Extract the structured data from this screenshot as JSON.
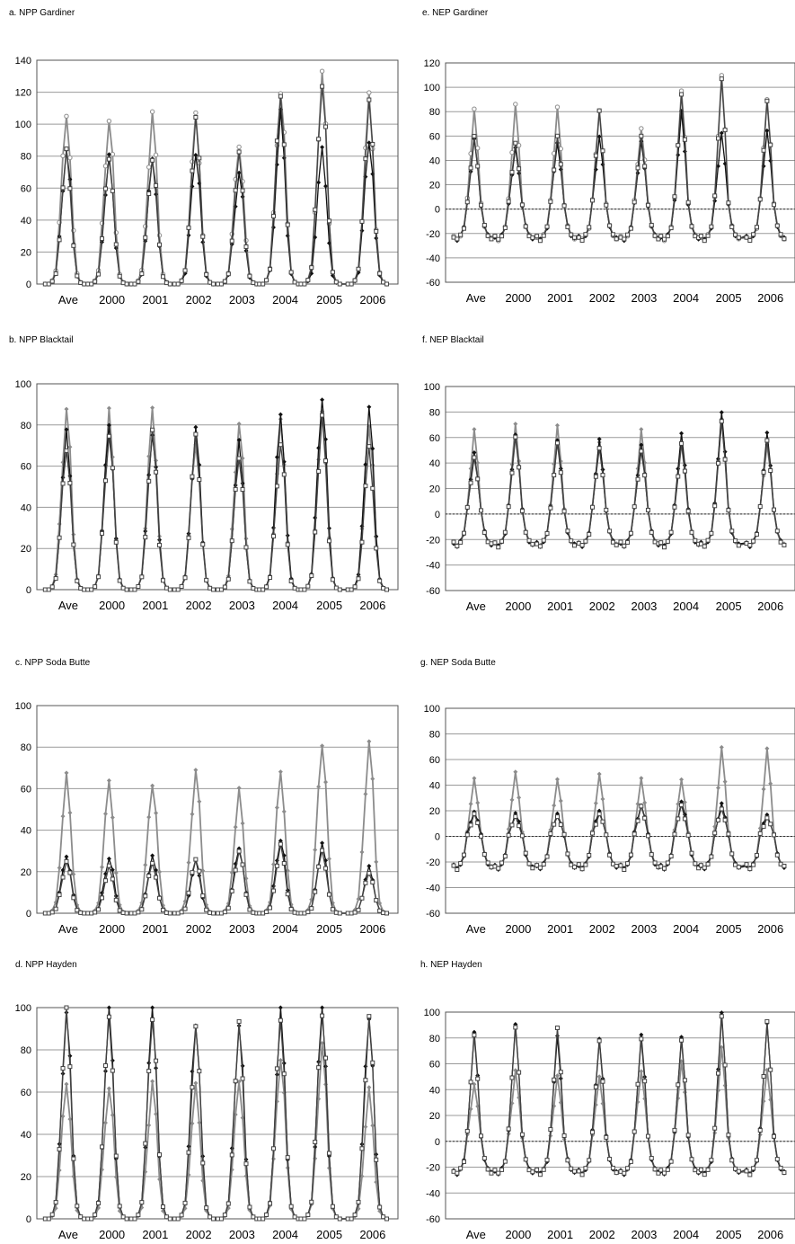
{
  "page": {
    "background": "#ffffff"
  },
  "colors": {
    "series_black": "#111111",
    "series_dark": "#444444",
    "series_gray": "#8c8c8c",
    "grid": "#9a9a9a",
    "frame": "#555555",
    "zero_line": "#333333"
  },
  "panels": [
    {
      "id": "a",
      "title": "a.  NPP Gardiner"
    },
    {
      "id": "e",
      "title": "e.  NEP Gardiner"
    },
    {
      "id": "b",
      "title": "b.   NPP Blacktail"
    },
    {
      "id": "f",
      "title": "f.  NEP Blacktail"
    },
    {
      "id": "c",
      "title": "c. NPP Soda Butte"
    },
    {
      "id": "g",
      "title": "g. NEP Soda Butte"
    },
    {
      "id": "d",
      "title": "d. NPP Hayden"
    },
    {
      "id": "h",
      "title": "h.  NEP Hayden"
    }
  ],
  "chart_data": [
    {
      "panel": "a",
      "type": "line",
      "title": "a.  NPP Gardiner",
      "ylim": [
        0,
        140
      ],
      "yticks": [
        0,
        20,
        40,
        60,
        80,
        100,
        120,
        140
      ],
      "zero_line": false,
      "grid": true,
      "categories": [
        "Ave",
        "2000",
        "2001",
        "2002",
        "2003",
        "2004",
        "2005",
        "2006"
      ],
      "series": [
        {
          "color": "#8c8c8c",
          "marker": "circle",
          "peaks": [
            108,
            105,
            105,
            104,
            88,
            123,
            130,
            116
          ]
        },
        {
          "color": "#111111",
          "marker": "diamond",
          "peaks": [
            84,
            78,
            78,
            84,
            70,
            105,
            85,
            92
          ]
        },
        {
          "color": "#444444",
          "marker": "square",
          "peaks": [
            82,
            80,
            80,
            102,
            80,
            120,
            128,
            113
          ]
        }
      ]
    },
    {
      "panel": "e",
      "type": "line",
      "title": "e.  NEP Gardiner",
      "ylim": [
        -60,
        120
      ],
      "yticks": [
        -60,
        -40,
        -20,
        0,
        20,
        40,
        60,
        80,
        100,
        120
      ],
      "zero_line": true,
      "grid": true,
      "categories": [
        "Ave",
        "2000",
        "2001",
        "2002",
        "2003",
        "2004",
        "2005",
        "2006"
      ],
      "series": [
        {
          "color": "#8c8c8c",
          "marker": "circle",
          "peaks": [
            83,
            86,
            83,
            81,
            67,
            97,
            109,
            90
          ]
        },
        {
          "color": "#111111",
          "marker": "diamond",
          "peaks": [
            57,
            50,
            55,
            60,
            55,
            80,
            63,
            65
          ]
        },
        {
          "color": "#444444",
          "marker": "square",
          "peaks": [
            60,
            55,
            60,
            80,
            60,
            95,
            107,
            88
          ]
        }
      ]
    },
    {
      "panel": "b",
      "type": "line",
      "title": "b.   NPP Blacktail",
      "ylim": [
        0,
        100
      ],
      "yticks": [
        0,
        20,
        40,
        60,
        80,
        100
      ],
      "zero_line": false,
      "grid": true,
      "categories": [
        "Ave",
        "2000",
        "2001",
        "2002",
        "2003",
        "2004",
        "2005",
        "2006"
      ],
      "series": [
        {
          "color": "#8c8c8c",
          "marker": "diamond",
          "peaks": [
            89,
            85,
            87,
            73,
            82,
            80,
            85,
            82
          ]
        },
        {
          "color": "#111111",
          "marker": "diamond",
          "peaks": [
            75,
            81,
            78,
            78,
            70,
            86,
            96,
            88
          ]
        },
        {
          "color": "#444444",
          "marker": "square",
          "peaks": [
            70,
            76,
            75,
            74,
            66,
            72,
            82,
            68
          ]
        }
      ]
    },
    {
      "panel": "f",
      "type": "line",
      "title": "f.  NEP Blacktail",
      "ylim": [
        -60,
        100
      ],
      "yticks": [
        -60,
        -40,
        -20,
        0,
        20,
        40,
        60,
        80,
        100
      ],
      "zero_line": true,
      "grid": true,
      "categories": [
        "Ave",
        "2000",
        "2001",
        "2002",
        "2003",
        "2004",
        "2005",
        "2006"
      ],
      "series": [
        {
          "color": "#8c8c8c",
          "marker": "diamond",
          "peaks": [
            66,
            70,
            70,
            57,
            66,
            55,
            75,
            55
          ]
        },
        {
          "color": "#111111",
          "marker": "diamond",
          "peaks": [
            48,
            63,
            58,
            58,
            54,
            64,
            80,
            63
          ]
        },
        {
          "color": "#444444",
          "marker": "square",
          "peaks": [
            45,
            60,
            55,
            52,
            50,
            55,
            72,
            58
          ]
        }
      ]
    },
    {
      "panel": "c",
      "type": "line",
      "title": "c. NPP Soda Butte",
      "ylim": [
        0,
        100
      ],
      "yticks": [
        0,
        20,
        40,
        60,
        80,
        100
      ],
      "zero_line": false,
      "grid": true,
      "categories": [
        "Ave",
        "2000",
        "2001",
        "2002",
        "2003",
        "2004",
        "2005",
        "2006"
      ],
      "series": [
        {
          "color": "#8c8c8c",
          "marker": "diamond",
          "peaks": [
            65,
            64,
            64,
            69,
            58,
            68,
            84,
            83
          ]
        },
        {
          "color": "#111111",
          "marker": "diamond",
          "peaks": [
            28,
            27,
            27,
            25,
            32,
            36,
            33,
            22
          ]
        },
        {
          "color": "#444444",
          "marker": "square",
          "peaks": [
            25,
            22,
            24,
            27,
            30,
            32,
            30,
            20
          ]
        }
      ]
    },
    {
      "panel": "g",
      "type": "line",
      "title": "g. NEP Soda Butte",
      "ylim": [
        -60,
        100
      ],
      "yticks": [
        -60,
        -40,
        -20,
        0,
        20,
        40,
        60,
        80,
        100
      ],
      "zero_line": true,
      "grid": true,
      "categories": [
        "Ave",
        "2000",
        "2001",
        "2002",
        "2003",
        "2004",
        "2005",
        "2006"
      ],
      "series": [
        {
          "color": "#8c8c8c",
          "marker": "diamond",
          "peaks": [
            45,
            51,
            45,
            48,
            45,
            45,
            70,
            68
          ]
        },
        {
          "color": "#111111",
          "marker": "diamond",
          "peaks": [
            20,
            18,
            17,
            20,
            25,
            27,
            25,
            17
          ]
        },
        {
          "color": "#444444",
          "marker": "square",
          "peaks": [
            17,
            15,
            16,
            18,
            23,
            24,
            22,
            15
          ]
        }
      ]
    },
    {
      "panel": "d",
      "type": "line",
      "title": "d. NPP Hayden",
      "ylim": [
        0,
        100
      ],
      "yticks": [
        0,
        20,
        40,
        60,
        80,
        100
      ],
      "zero_line": false,
      "grid": true,
      "categories": [
        "Ave",
        "2000",
        "2001",
        "2002",
        "2003",
        "2004",
        "2005",
        "2006"
      ],
      "series": [
        {
          "color": "#8c8c8c",
          "marker": "diamond",
          "peaks": [
            65,
            64,
            64,
            62,
            66,
            78,
            82,
            60
          ]
        },
        {
          "color": "#111111",
          "marker": "diamond",
          "peaks": [
            99,
            99,
            99,
            95,
            93,
            97,
            100,
            98
          ]
        },
        {
          "color": "#444444",
          "marker": "square",
          "peaks": [
            98,
            97,
            98,
            90,
            90,
            95,
            100,
            95
          ]
        }
      ]
    },
    {
      "panel": "h",
      "type": "line",
      "title": "h.  NEP Hayden",
      "ylim": [
        -60,
        100
      ],
      "yticks": [
        -60,
        -40,
        -20,
        0,
        20,
        40,
        60,
        80,
        100
      ],
      "zero_line": true,
      "grid": true,
      "categories": [
        "Ave",
        "2000",
        "2001",
        "2002",
        "2003",
        "2004",
        "2005",
        "2006"
      ],
      "series": [
        {
          "color": "#8c8c8c",
          "marker": "diamond",
          "peaks": [
            45,
            55,
            50,
            50,
            55,
            62,
            72,
            55
          ]
        },
        {
          "color": "#111111",
          "marker": "diamond",
          "peaks": [
            84,
            90,
            82,
            80,
            82,
            80,
            100,
            92
          ]
        },
        {
          "color": "#444444",
          "marker": "square",
          "peaks": [
            82,
            89,
            88,
            77,
            79,
            79,
            97,
            92
          ]
        }
      ]
    }
  ]
}
